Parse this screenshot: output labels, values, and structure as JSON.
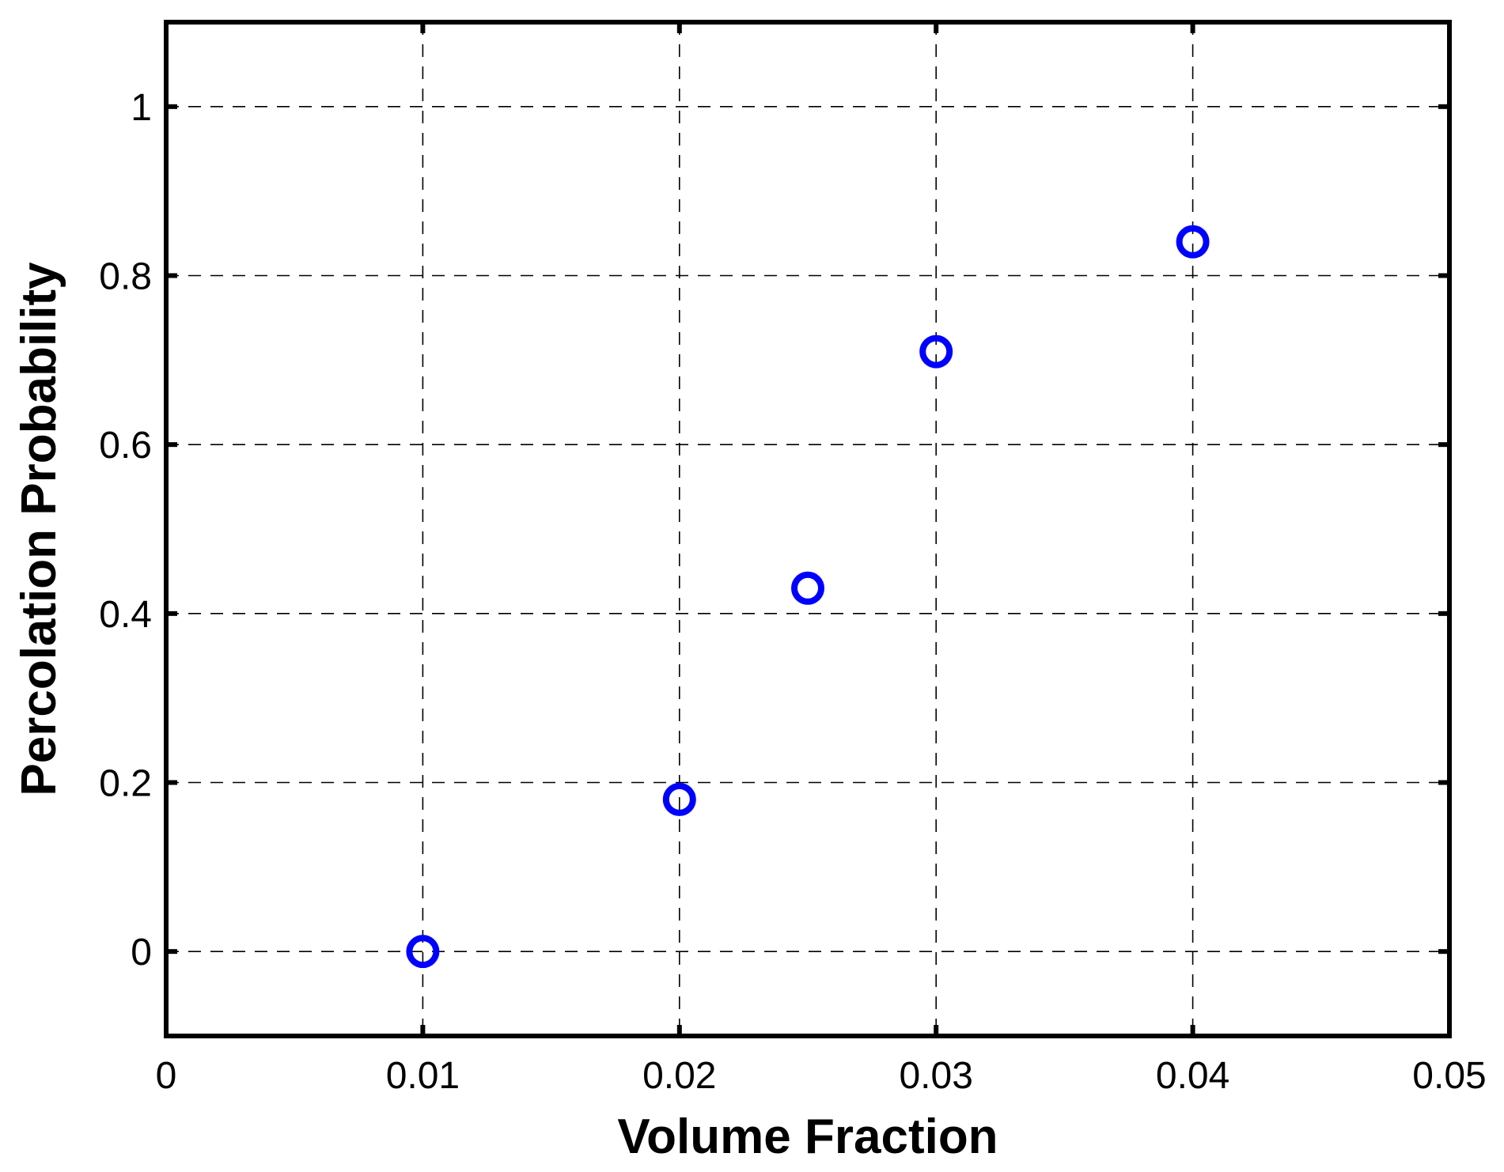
{
  "chart_data": {
    "type": "scatter",
    "title": "",
    "xlabel": "Volume Fraction",
    "ylabel": "Percolation Probability",
    "xlim": [
      0,
      0.05
    ],
    "ylim": [
      -0.1,
      1.1
    ],
    "xticks": [
      0,
      0.01,
      0.02,
      0.03,
      0.04,
      0.05
    ],
    "xtick_labels": [
      "0",
      "0.01",
      "0.02",
      "0.03",
      "0.04",
      "0.05"
    ],
    "yticks": [
      0,
      0.2,
      0.4,
      0.6,
      0.8,
      1
    ],
    "ytick_labels": [
      "0",
      "0.2",
      "0.4",
      "0.6",
      "0.8",
      "1"
    ],
    "grid": true,
    "grid_style": "dashed",
    "legend": "none",
    "marker": "circle",
    "marker_filled": false,
    "series": [
      {
        "color": "#0000ff",
        "x": [
          0.01,
          0.02,
          0.025,
          0.03,
          0.04
        ],
        "y": [
          0.0,
          0.18,
          0.43,
          0.71,
          0.84
        ]
      }
    ]
  }
}
